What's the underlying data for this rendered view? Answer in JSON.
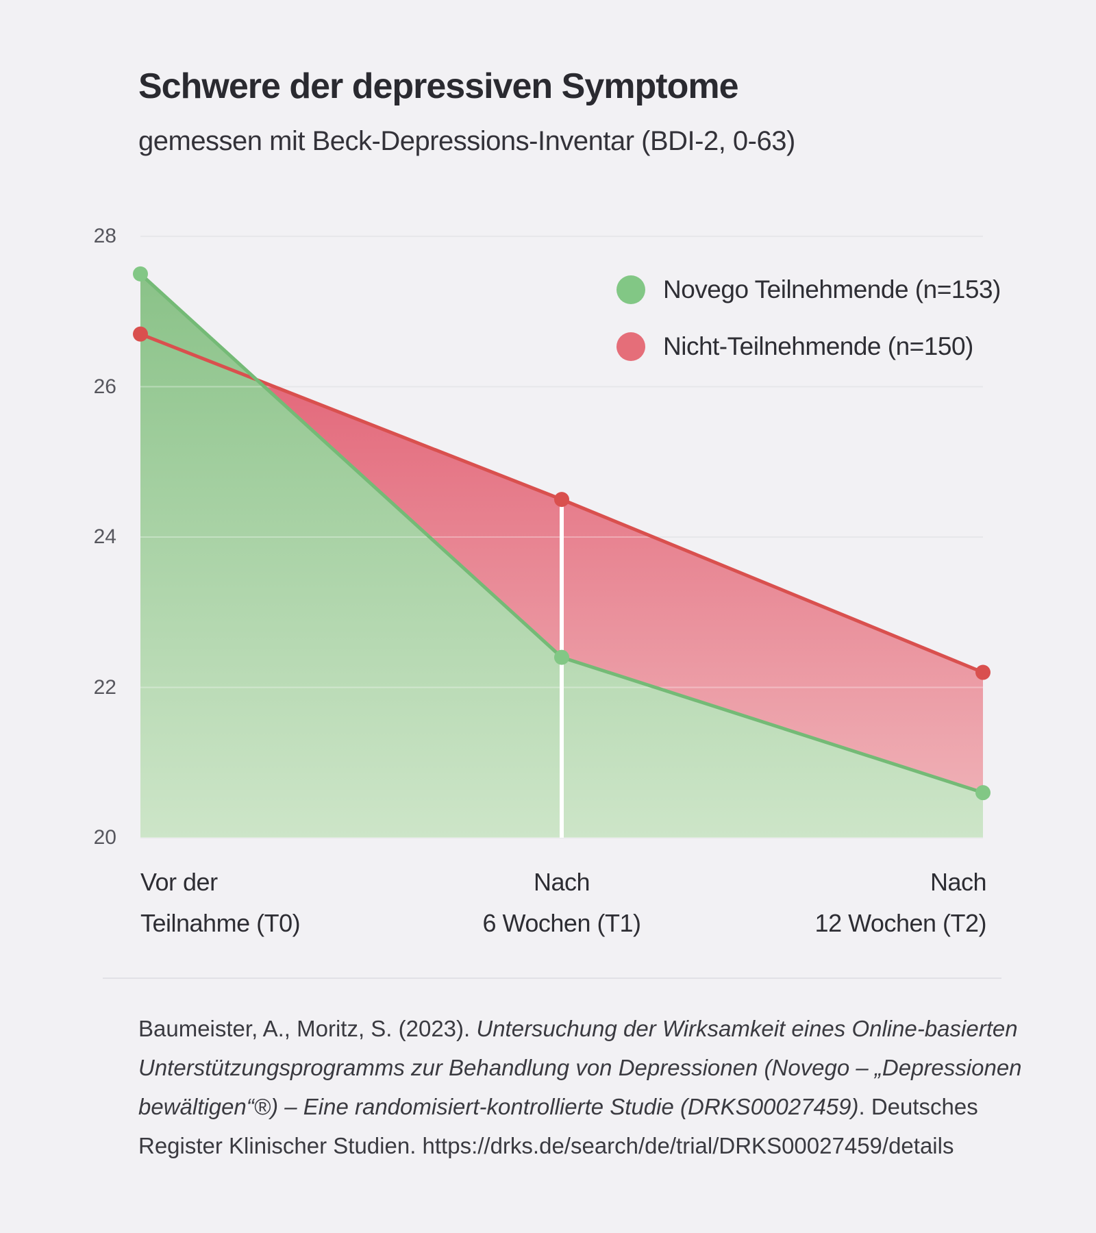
{
  "title": "Schwere der depressiven Symptome",
  "subtitle": "gemessen mit Beck-Depressions-Inventar (BDI-2, 0-63)",
  "colors": {
    "background": "#f2f1f4",
    "grid": "#dcdce1",
    "grid_overlay": "rgba(255,255,255,0.32)",
    "green_line": "#74ba76",
    "green_dot": "#82c785",
    "green_fill_top": "#8ac288",
    "green_fill_bottom": "#cde5c8",
    "red_line": "#d9504e",
    "red_dot": "#d9504e",
    "red_fill_top": "#e3697b",
    "red_fill_bottom": "#f0b6bb",
    "marker_line": "#ffffff",
    "legend_green": "#82c785",
    "legend_red": "#e56e79"
  },
  "legend": [
    {
      "label": "Novego Teilnehmende (n=153)",
      "color_key": "legend_green"
    },
    {
      "label": "Nicht-Teilnehmende (n=150)",
      "color_key": "legend_red"
    }
  ],
  "chart_data": {
    "type": "line",
    "title": "Schwere der depressiven Symptome",
    "subtitle": "gemessen mit Beck-Depressions-Inventar (BDI-2, 0-63)",
    "x_categories": [
      [
        "Vor der",
        "Teilnahme (T0)"
      ],
      [
        "Nach",
        "6 Wochen (T1)"
      ],
      [
        "Nach",
        "12 Wochen (T2)"
      ]
    ],
    "y_ticks": [
      28,
      26,
      24,
      22,
      20
    ],
    "ylim": [
      20,
      28
    ],
    "grid": true,
    "legend_position": "top-right",
    "marker_line_index": 1,
    "series": [
      {
        "name": "Novego Teilnehmende (n=153)",
        "values": [
          27.5,
          22.4,
          20.6
        ],
        "color_key": "green"
      },
      {
        "name": "Nicht-Teilnehmende (n=150)",
        "values": [
          26.7,
          24.5,
          22.2
        ],
        "color_key": "red"
      }
    ]
  },
  "citation": {
    "lines": [
      [
        {
          "text": "Baumeister, A., Moritz, S. (2023). ",
          "italic": false
        },
        {
          "text": "Untersuchung der Wirksamkeit eines Online-basierten",
          "italic": true
        }
      ],
      [
        {
          "text": "Unterstützungsprogramms zur Behandlung von Depressionen (Novego – „Depressionen",
          "italic": true
        }
      ],
      [
        {
          "text": "bewältigen“®) – Eine randomisiert-kontrollierte Studie (DRKS00027459)",
          "italic": true
        },
        {
          "text": ". Deutsches",
          "italic": false
        }
      ],
      [
        {
          "text": "Register Klinischer Studien. https://drks.de/search/de/trial/DRKS00027459/details",
          "italic": false
        }
      ]
    ]
  }
}
